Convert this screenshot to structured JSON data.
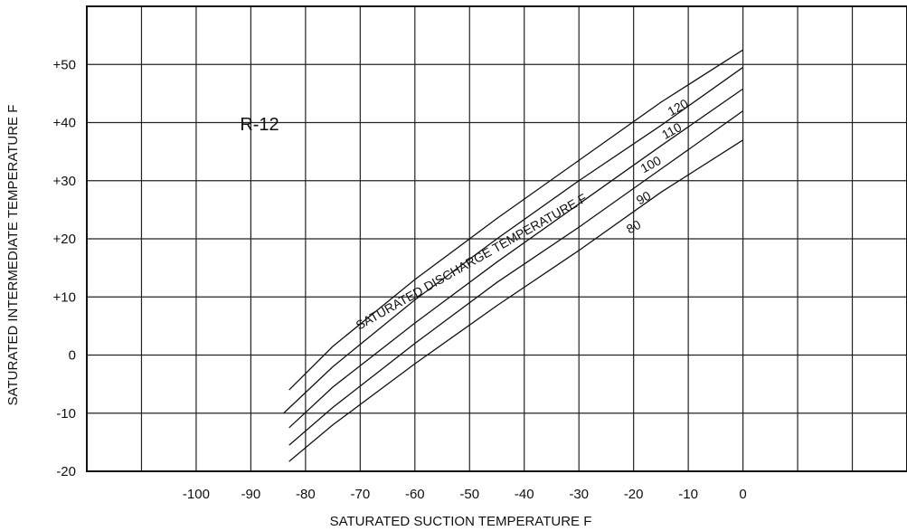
{
  "chart_data": {
    "type": "line",
    "title": "",
    "xlabel": "SATURATED SUCTION TEMPERATURE F",
    "ylabel": "SATURATED INTERMEDIATE TEMPERATURE F",
    "xlim": [
      -120,
      30
    ],
    "ylim": [
      -20,
      60
    ],
    "x_ticks": [
      -100,
      -90,
      -80,
      -70,
      -60,
      -50,
      -40,
      -30,
      -20,
      -10,
      0
    ],
    "x_tick_labels": [
      "-100",
      "-90",
      "-80",
      "-70",
      "-60",
      "-50",
      "-40",
      "-30",
      "-20",
      "-10",
      "0"
    ],
    "y_ticks": [
      -20,
      -10,
      0,
      10,
      20,
      30,
      40,
      50
    ],
    "y_tick_labels": [
      "-20",
      "-10",
      "0",
      "+10",
      "+20",
      "+30",
      "+40",
      "+50"
    ],
    "grid": true,
    "annotation_refrigerant": "R-12",
    "annotation_family": "SATURATED DISCHARGE TEMPERATURE F",
    "series": [
      {
        "name": "120",
        "x": [
          -83,
          -75,
          -60,
          -45,
          -30,
          -15,
          0
        ],
        "y": [
          -6.0,
          1.5,
          13.0,
          23.5,
          33.5,
          43.5,
          52.5
        ]
      },
      {
        "name": "110",
        "x": [
          -84,
          -75,
          -60,
          -45,
          -30,
          -15,
          0
        ],
        "y": [
          -10.0,
          -2.0,
          9.5,
          20.0,
          30.0,
          39.5,
          49.5
        ]
      },
      {
        "name": "100",
        "x": [
          -83,
          -75,
          -60,
          -45,
          -30,
          -15,
          0
        ],
        "y": [
          -12.5,
          -5.5,
          5.5,
          16.0,
          26.0,
          36.0,
          45.8
        ]
      },
      {
        "name": "90",
        "x": [
          -83,
          -75,
          -60,
          -45,
          -30,
          -15,
          0
        ],
        "y": [
          -15.5,
          -9.0,
          2.0,
          12.5,
          22.0,
          32.0,
          42.0
        ]
      },
      {
        "name": "80",
        "x": [
          -83,
          -75,
          -60,
          -45,
          -30,
          -15,
          0
        ],
        "y": [
          -18.3,
          -12.0,
          -1.5,
          8.5,
          18.0,
          28.0,
          37.0
        ]
      }
    ]
  }
}
